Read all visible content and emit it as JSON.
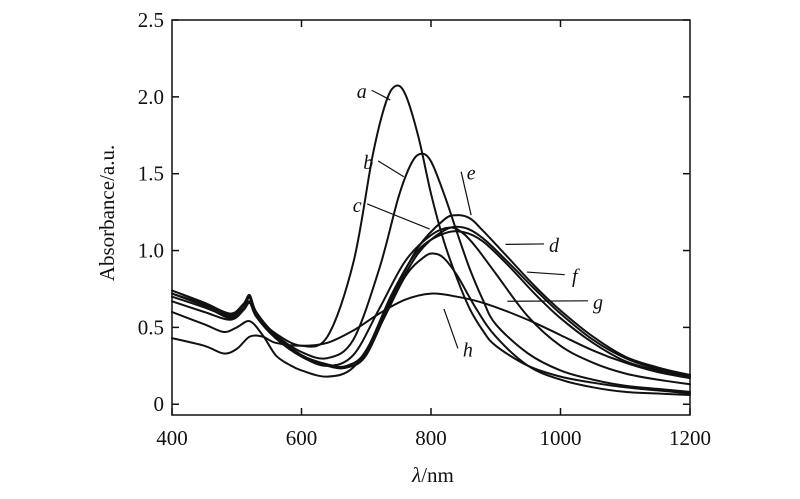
{
  "chart_data": {
    "type": "line",
    "xlabel_symbol": "λ",
    "xlabel_unit": "/nm",
    "ylabel": "Absorbance/a.u.",
    "xlim": [
      400,
      1200
    ],
    "ylim": [
      -0.07,
      2.5
    ],
    "x_ticks": [
      400,
      600,
      800,
      1000,
      1200
    ],
    "x_tick_labels": [
      "400",
      "600",
      "800",
      "1000",
      "1200"
    ],
    "y_ticks": [
      0,
      0.5,
      1.0,
      1.5,
      2.0,
      2.5
    ],
    "y_tick_labels": [
      "0",
      "0.5",
      "1.0",
      "1.5",
      "2.0",
      "2.5"
    ],
    "grid": false,
    "series": [
      {
        "name": "a",
        "x": [
          400,
          450,
          490,
          510,
          520,
          530,
          560,
          600,
          640,
          680,
          710,
          730,
          745,
          760,
          780,
          800,
          820,
          840,
          860,
          880,
          900,
          950,
          1000,
          1050,
          1100,
          1150,
          1200
        ],
        "y": [
          0.7,
          0.63,
          0.57,
          0.62,
          0.66,
          0.58,
          0.46,
          0.38,
          0.44,
          0.92,
          1.62,
          1.96,
          2.07,
          2.02,
          1.75,
          1.37,
          1.06,
          0.82,
          0.62,
          0.48,
          0.38,
          0.25,
          0.18,
          0.14,
          0.11,
          0.09,
          0.07
        ]
      },
      {
        "name": "b",
        "x": [
          400,
          450,
          490,
          510,
          520,
          530,
          560,
          600,
          640,
          680,
          720,
          750,
          770,
          785,
          800,
          820,
          840,
          860,
          880,
          900,
          950,
          1000,
          1050,
          1100,
          1150,
          1200
        ],
        "y": [
          0.72,
          0.64,
          0.56,
          0.62,
          0.67,
          0.58,
          0.45,
          0.34,
          0.3,
          0.42,
          0.88,
          1.35,
          1.57,
          1.63,
          1.58,
          1.37,
          1.12,
          0.88,
          0.68,
          0.52,
          0.33,
          0.22,
          0.16,
          0.12,
          0.1,
          0.08
        ]
      },
      {
        "name": "c",
        "x": [
          400,
          450,
          490,
          510,
          520,
          530,
          560,
          600,
          640,
          680,
          720,
          760,
          800,
          830,
          850,
          870,
          900,
          950,
          1000,
          1050,
          1100,
          1150,
          1200
        ],
        "y": [
          0.67,
          0.6,
          0.55,
          0.61,
          0.66,
          0.57,
          0.43,
          0.31,
          0.25,
          0.32,
          0.62,
          0.93,
          1.1,
          1.15,
          1.11,
          1.02,
          0.85,
          0.57,
          0.38,
          0.27,
          0.2,
          0.16,
          0.13
        ]
      },
      {
        "name": "d",
        "x": [
          400,
          450,
          490,
          510,
          520,
          530,
          560,
          600,
          640,
          670,
          700,
          740,
          780,
          820,
          850,
          880,
          920,
          960,
          1000,
          1050,
          1100,
          1150,
          1200
        ],
        "y": [
          0.74,
          0.66,
          0.59,
          0.65,
          0.7,
          0.6,
          0.45,
          0.32,
          0.26,
          0.25,
          0.35,
          0.72,
          1.0,
          1.11,
          1.12,
          1.06,
          0.9,
          0.72,
          0.56,
          0.4,
          0.28,
          0.22,
          0.18
        ]
      },
      {
        "name": "e",
        "x": [
          400,
          450,
          490,
          510,
          520,
          530,
          560,
          600,
          640,
          670,
          700,
          740,
          780,
          820,
          840,
          860,
          880,
          920,
          960,
          1000,
          1050,
          1100,
          1150,
          1200
        ],
        "y": [
          0.74,
          0.66,
          0.59,
          0.65,
          0.71,
          0.6,
          0.45,
          0.32,
          0.25,
          0.24,
          0.33,
          0.7,
          1.02,
          1.2,
          1.23,
          1.21,
          1.13,
          0.95,
          0.77,
          0.61,
          0.44,
          0.31,
          0.24,
          0.19
        ]
      },
      {
        "name": "f",
        "x": [
          400,
          450,
          490,
          510,
          520,
          530,
          560,
          600,
          640,
          670,
          700,
          740,
          780,
          820,
          850,
          880,
          920,
          960,
          1000,
          1050,
          1100,
          1150,
          1200
        ],
        "y": [
          0.72,
          0.65,
          0.58,
          0.64,
          0.69,
          0.59,
          0.44,
          0.31,
          0.25,
          0.24,
          0.32,
          0.68,
          0.98,
          1.13,
          1.15,
          1.08,
          0.92,
          0.75,
          0.59,
          0.42,
          0.3,
          0.23,
          0.19
        ]
      },
      {
        "name": "g",
        "x": [
          400,
          450,
          480,
          500,
          520,
          540,
          560,
          600,
          640,
          680,
          720,
          760,
          800,
          840,
          880,
          920,
          960,
          1000,
          1050,
          1100,
          1150,
          1200
        ],
        "y": [
          0.43,
          0.38,
          0.33,
          0.36,
          0.44,
          0.44,
          0.4,
          0.38,
          0.4,
          0.48,
          0.59,
          0.68,
          0.72,
          0.7,
          0.66,
          0.6,
          0.53,
          0.45,
          0.35,
          0.27,
          0.21,
          0.17
        ]
      },
      {
        "name": "h",
        "x": [
          400,
          450,
          480,
          500,
          520,
          540,
          560,
          580,
          600,
          640,
          680,
          720,
          760,
          790,
          805,
          820,
          840,
          870,
          900,
          950,
          1000,
          1050,
          1100,
          1150,
          1200
        ],
        "y": [
          0.6,
          0.52,
          0.47,
          0.5,
          0.54,
          0.45,
          0.32,
          0.26,
          0.22,
          0.18,
          0.24,
          0.5,
          0.83,
          0.96,
          0.98,
          0.95,
          0.84,
          0.62,
          0.44,
          0.25,
          0.16,
          0.11,
          0.08,
          0.07,
          0.06
        ]
      }
    ],
    "labels": [
      {
        "text": "a",
        "x": 693,
        "y": 2.03,
        "tx": 737,
        "ty": 1.98
      },
      {
        "text": "b",
        "x": 703,
        "y": 1.57,
        "tx": 758,
        "ty": 1.48
      },
      {
        "text": "c",
        "x": 686,
        "y": 1.29,
        "tx": 798,
        "ty": 1.14
      },
      {
        "text": "d",
        "x": 990,
        "y": 1.03,
        "tx": 915,
        "ty": 1.04
      },
      {
        "text": "e",
        "x": 862,
        "y": 1.5,
        "tx": 862,
        "ty": 1.23
      },
      {
        "text": "f",
        "x": 1022,
        "y": 0.83,
        "tx": 948,
        "ty": 0.86
      },
      {
        "text": "g",
        "x": 1058,
        "y": 0.66,
        "tx": 918,
        "ty": 0.67
      },
      {
        "text": "h",
        "x": 857,
        "y": 0.35,
        "tx": 820,
        "ty": 0.62
      }
    ]
  }
}
